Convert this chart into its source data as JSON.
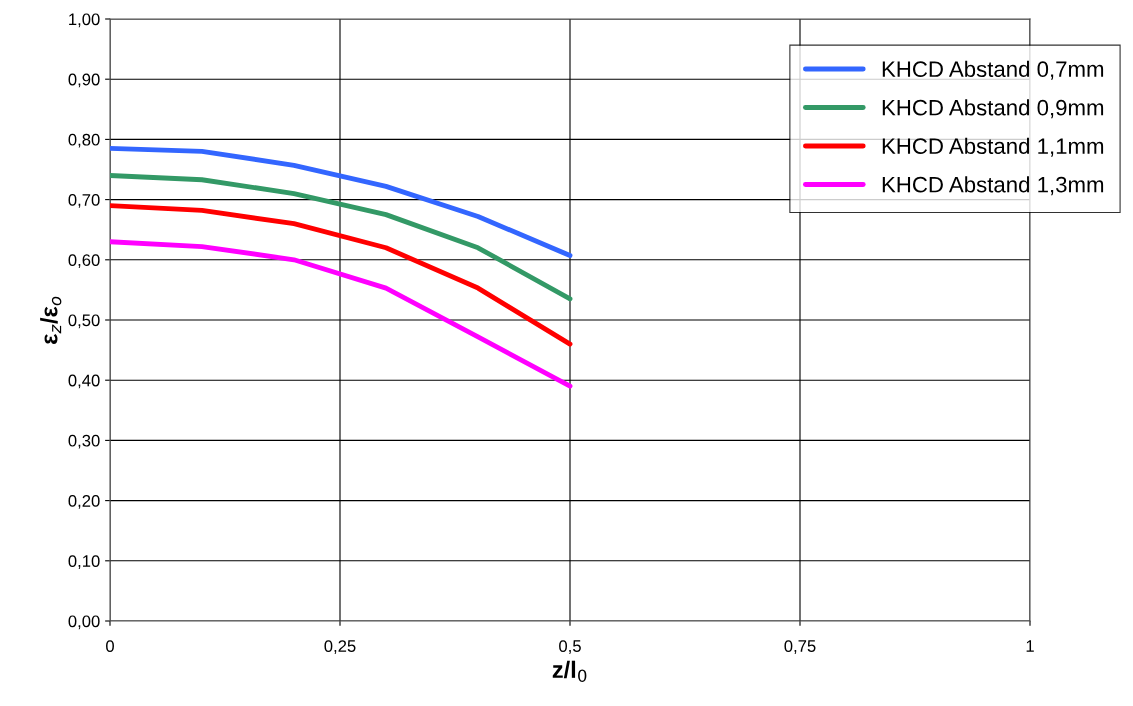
{
  "chart_data": {
    "type": "line",
    "xlabel": "z/l$_{0}$",
    "ylabel": "ε$_{z}$/ε$_{o}$",
    "x": [
      0,
      0.1,
      0.2,
      0.3,
      0.4,
      0.5
    ],
    "series": [
      {
        "name": "KHCD Abstand 0,7mm",
        "color": "#3366ff",
        "values": [
          0.785,
          0.78,
          0.757,
          0.722,
          0.672,
          0.607
        ]
      },
      {
        "name": "KHCD Abstand 0,9mm",
        "color": "#339966",
        "values": [
          0.74,
          0.733,
          0.71,
          0.675,
          0.62,
          0.535
        ]
      },
      {
        "name": "KHCD Abstand 1,1mm",
        "color": "#ff0000",
        "values": [
          0.69,
          0.682,
          0.66,
          0.62,
          0.553,
          0.46
        ]
      },
      {
        "name": "KHCD Abstand 1,3mm",
        "color": "#ff00ff",
        "values": [
          0.63,
          0.622,
          0.6,
          0.553,
          0.472,
          0.39
        ]
      }
    ],
    "xlim": [
      0,
      1
    ],
    "xticks": [
      0,
      {
        "value": 0.25,
        "label": "0,25"
      },
      {
        "value": 0.5,
        "label": "0,5"
      },
      {
        "value": 0.75,
        "label": "0,75"
      },
      1
    ],
    "ylim": [
      0,
      1
    ],
    "yticks": [
      {
        "value": 0,
        "label": "0,00"
      },
      {
        "value": 0.1,
        "label": "0,10"
      },
      {
        "value": 0.2,
        "label": "0,20"
      },
      {
        "value": 0.3,
        "label": "0,30"
      },
      {
        "value": 0.4,
        "label": "0,40"
      },
      {
        "value": 0.5,
        "label": "0,50"
      },
      {
        "value": 0.6,
        "label": "0,60"
      },
      {
        "value": 0.7,
        "label": "0,70"
      },
      {
        "value": 0.8,
        "label": "0,80"
      },
      {
        "value": 0.9,
        "label": "0,90"
      },
      {
        "value": 1,
        "label": "1,00"
      }
    ],
    "grid": true,
    "legend": "top right",
    "marker": "none",
    "line_style": "solid"
  }
}
